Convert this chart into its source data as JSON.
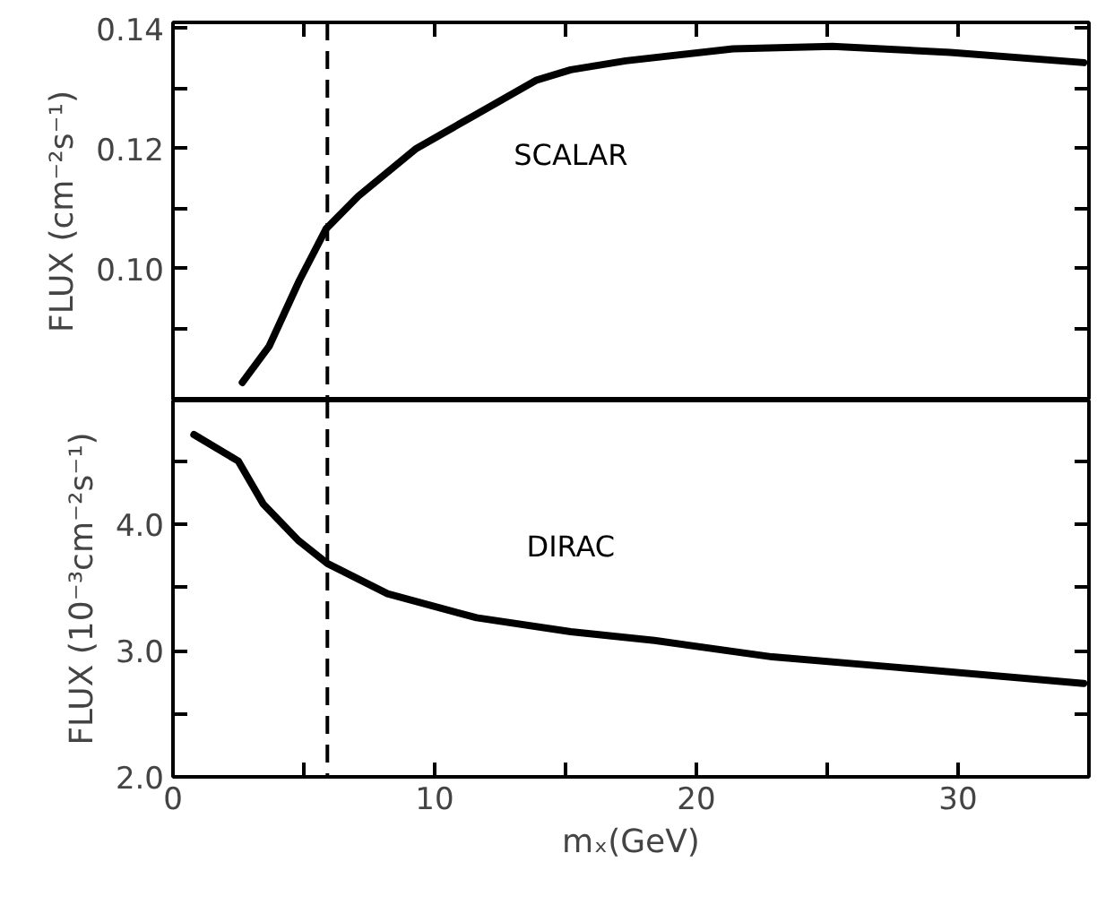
{
  "chart_data": [
    {
      "type": "line",
      "ylabel": "FLUX (cm⁻²s⁻¹)",
      "xlim": [
        0,
        35
      ],
      "ylim": [
        0.078,
        0.141
      ],
      "xticks": [
        {
          "value": 0,
          "label": null
        },
        {
          "value": 5,
          "label": null
        },
        {
          "value": 10,
          "label": null
        },
        {
          "value": 15,
          "label": null
        },
        {
          "value": 20,
          "label": null
        },
        {
          "value": 25,
          "label": null
        },
        {
          "value": 30,
          "label": null
        }
      ],
      "yticks": [
        {
          "value": 0.09,
          "label": null
        },
        {
          "value": 0.1,
          "label": "0.10"
        },
        {
          "value": 0.11,
          "label": null
        },
        {
          "value": 0.12,
          "label": "0.12"
        },
        {
          "value": 0.13,
          "label": null
        },
        {
          "value": 0.14,
          "label": "0.14"
        }
      ],
      "tick_labels": "y",
      "grid": false,
      "marker": "none",
      "line_style": "solid",
      "ref_lines": [
        {
          "axis": "x",
          "value": 5.9,
          "line_style": "dashed"
        }
      ],
      "series": [
        {
          "name": "SCALAR",
          "color": "#000000",
          "x": [
            2.65,
            3.67,
            4.83,
            5.85,
            7.07,
            9.3,
            11.6,
            13.9,
            15.2,
            17.3,
            21.4,
            25.2,
            29.7,
            34.8
          ],
          "values": [
            0.081,
            0.087,
            0.098,
            0.1066,
            0.112,
            0.12,
            0.1257,
            0.1314,
            0.1331,
            0.1346,
            0.1366,
            0.137,
            0.136,
            0.1343
          ]
        }
      ]
    },
    {
      "type": "line",
      "ylabel": "FLUX (10⁻³cm⁻²s⁻¹)",
      "xlabel": "mₓ(GeV)",
      "xlim": [
        0,
        35
      ],
      "ylim": [
        2.0,
        4.98
      ],
      "xticks": [
        0,
        {
          "value": 5,
          "label": null
        },
        10,
        {
          "value": 15,
          "label": null
        },
        20,
        {
          "value": 25,
          "label": null
        },
        30
      ],
      "yticks": [
        {
          "value": 2.0,
          "label": "2.0"
        },
        {
          "value": 2.5,
          "label": null
        },
        {
          "value": 3.0,
          "label": "3.0"
        },
        {
          "value": 3.5,
          "label": null
        },
        {
          "value": 4.0,
          "label": "4.0"
        },
        {
          "value": 4.5,
          "label": null
        }
      ],
      "grid": false,
      "marker": "none",
      "line_style": "solid",
      "ref_lines": [
        {
          "axis": "x",
          "value": 5.9,
          "line_style": "dashed"
        }
      ],
      "series": [
        {
          "name": "DIRAC",
          "color": "#000000",
          "x": [
            0.8,
            2.5,
            3.45,
            4.8,
            5.9,
            8.2,
            11.6,
            15.2,
            18.4,
            22.9,
            27.5,
            34.8
          ],
          "values": [
            4.71,
            4.5,
            4.16,
            3.87,
            3.69,
            3.45,
            3.26,
            3.15,
            3.08,
            2.95,
            2.87,
            2.74
          ]
        }
      ]
    }
  ]
}
